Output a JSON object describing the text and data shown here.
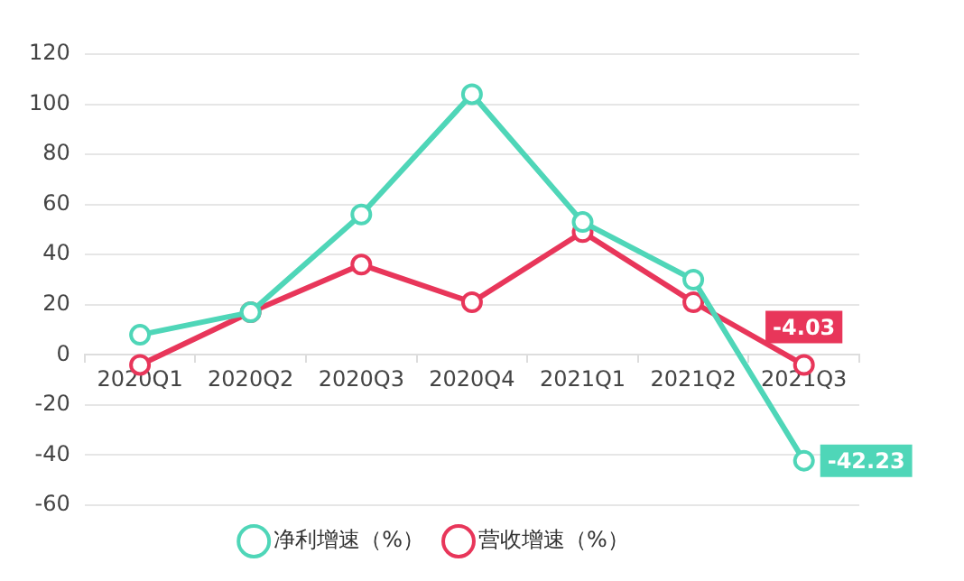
{
  "chart_data": {
    "type": "line",
    "categories": [
      "2020Q1",
      "2020Q2",
      "2020Q3",
      "2020Q4",
      "2021Q1",
      "2021Q2",
      "2021Q3"
    ],
    "series": [
      {
        "name": "净利增速（%）",
        "color": "#4fd6b8",
        "values": [
          8,
          17,
          56,
          104,
          53,
          30,
          -42.23
        ],
        "value_labels": [
          null,
          null,
          null,
          null,
          null,
          null,
          "-42.23"
        ]
      },
      {
        "name": "营收增速（%）",
        "color": "#e8365a",
        "values": [
          -4,
          17,
          36,
          21,
          49,
          21,
          -4.03
        ],
        "value_labels": [
          null,
          null,
          null,
          null,
          null,
          null,
          "-4.03"
        ]
      }
    ],
    "ylim": [
      -60,
      120
    ],
    "yticks": [
      -60,
      -40,
      -20,
      0,
      20,
      40,
      60,
      80,
      100,
      120
    ],
    "grid": "y",
    "legend": "bottom",
    "marker": "circle",
    "line_style": "solid"
  }
}
